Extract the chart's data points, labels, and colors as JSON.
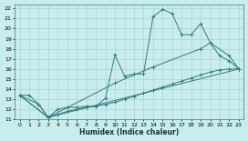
{
  "xlabel": "Humidex (Indice chaleur)",
  "xlim": [
    -0.5,
    23.5
  ],
  "ylim": [
    11,
    22.4
  ],
  "xticks": [
    0,
    1,
    2,
    3,
    4,
    5,
    6,
    7,
    8,
    9,
    10,
    11,
    12,
    13,
    14,
    15,
    16,
    17,
    18,
    19,
    20,
    21,
    22,
    23
  ],
  "yticks": [
    11,
    12,
    13,
    14,
    15,
    16,
    17,
    18,
    19,
    20,
    21,
    22
  ],
  "background_color": "#c9eded",
  "grid_color": "#aad4d4",
  "line_color": "#2e7d7d",
  "line1_x": [
    0,
    1,
    2,
    3,
    4,
    5,
    6,
    7,
    8,
    9,
    10,
    11,
    12,
    13,
    14,
    15,
    16,
    17,
    18,
    19,
    20,
    21,
    22,
    23
  ],
  "line1_y": [
    13.4,
    13.4,
    12.5,
    11.2,
    12.0,
    12.2,
    12.2,
    12.3,
    12.3,
    13.1,
    17.4,
    15.3,
    15.5,
    15.5,
    21.2,
    21.9,
    21.5,
    19.4,
    19.4,
    20.5,
    18.6,
    17.3,
    16.8,
    16.0
  ],
  "line2_x": [
    0,
    3,
    10,
    14,
    19,
    20,
    22,
    23
  ],
  "line2_y": [
    13.4,
    11.2,
    14.6,
    16.2,
    18.0,
    18.6,
    17.3,
    16.0
  ],
  "line3_x": [
    0,
    2,
    3,
    4,
    5,
    6,
    7,
    8,
    9,
    10,
    11,
    12,
    13,
    14,
    15,
    16,
    17,
    18,
    19,
    20,
    21,
    22,
    23
  ],
  "line3_y": [
    13.4,
    12.5,
    11.2,
    11.5,
    11.8,
    12.0,
    12.2,
    12.3,
    12.5,
    12.7,
    13.0,
    13.3,
    13.6,
    13.9,
    14.2,
    14.5,
    14.8,
    15.1,
    15.4,
    15.7,
    15.9,
    16.0,
    16.0
  ],
  "line4_x": [
    0,
    3,
    23
  ],
  "line4_y": [
    13.4,
    11.2,
    16.0
  ]
}
